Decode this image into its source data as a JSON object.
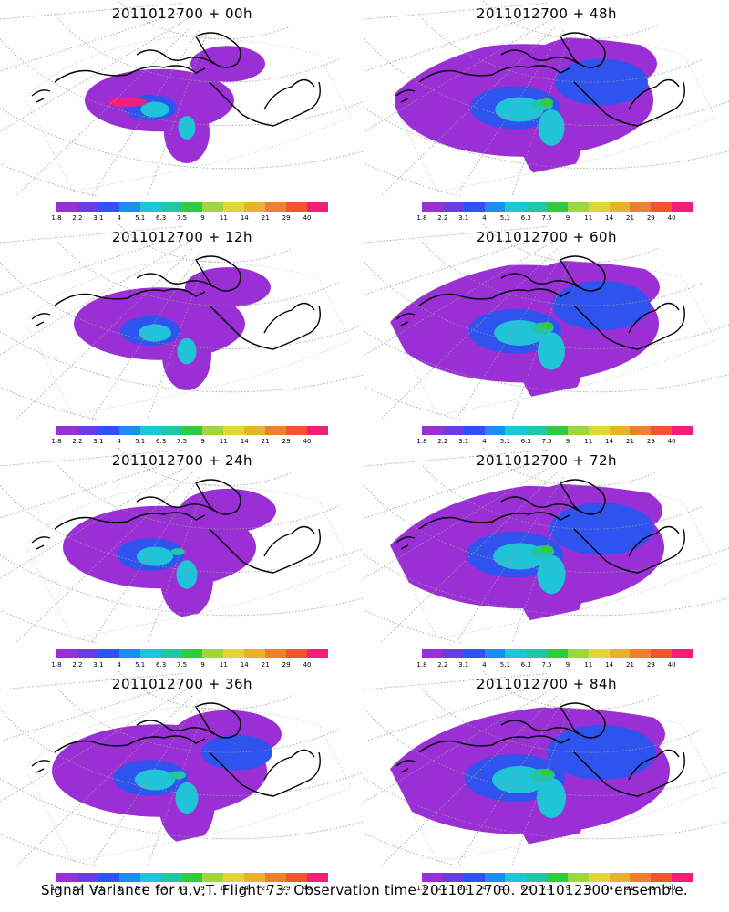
{
  "colorbar": {
    "labels": [
      "1.8",
      "2.2",
      "3.1",
      "4",
      "5.1",
      "6.3",
      "7.5",
      "9",
      "11",
      "14",
      "21",
      "29",
      "40"
    ],
    "colors": [
      "#9b2fd6",
      "#6a3de0",
      "#2f53ef",
      "#1a8ff0",
      "#1fc4d8",
      "#22c6a4",
      "#2ecc3d",
      "#a0d63a",
      "#e0d63a",
      "#e8b12f",
      "#ef7f2a",
      "#f0552f",
      "#f01f79"
    ]
  },
  "panels": [
    {
      "title": "2011012700 + 00h"
    },
    {
      "title": "2011012700 + 48h"
    },
    {
      "title": "2011012700 + 12h"
    },
    {
      "title": "2011012700 + 60h"
    },
    {
      "title": "2011012700 + 24h"
    },
    {
      "title": "2011012700 + 72h"
    },
    {
      "title": "2011012700 + 36h"
    },
    {
      "title": "2011012700 + 84h"
    }
  ],
  "caption": "Signal Variance for u,v,T. Flight 73. Observation time 2011012700. 2011012300 ensemble."
}
